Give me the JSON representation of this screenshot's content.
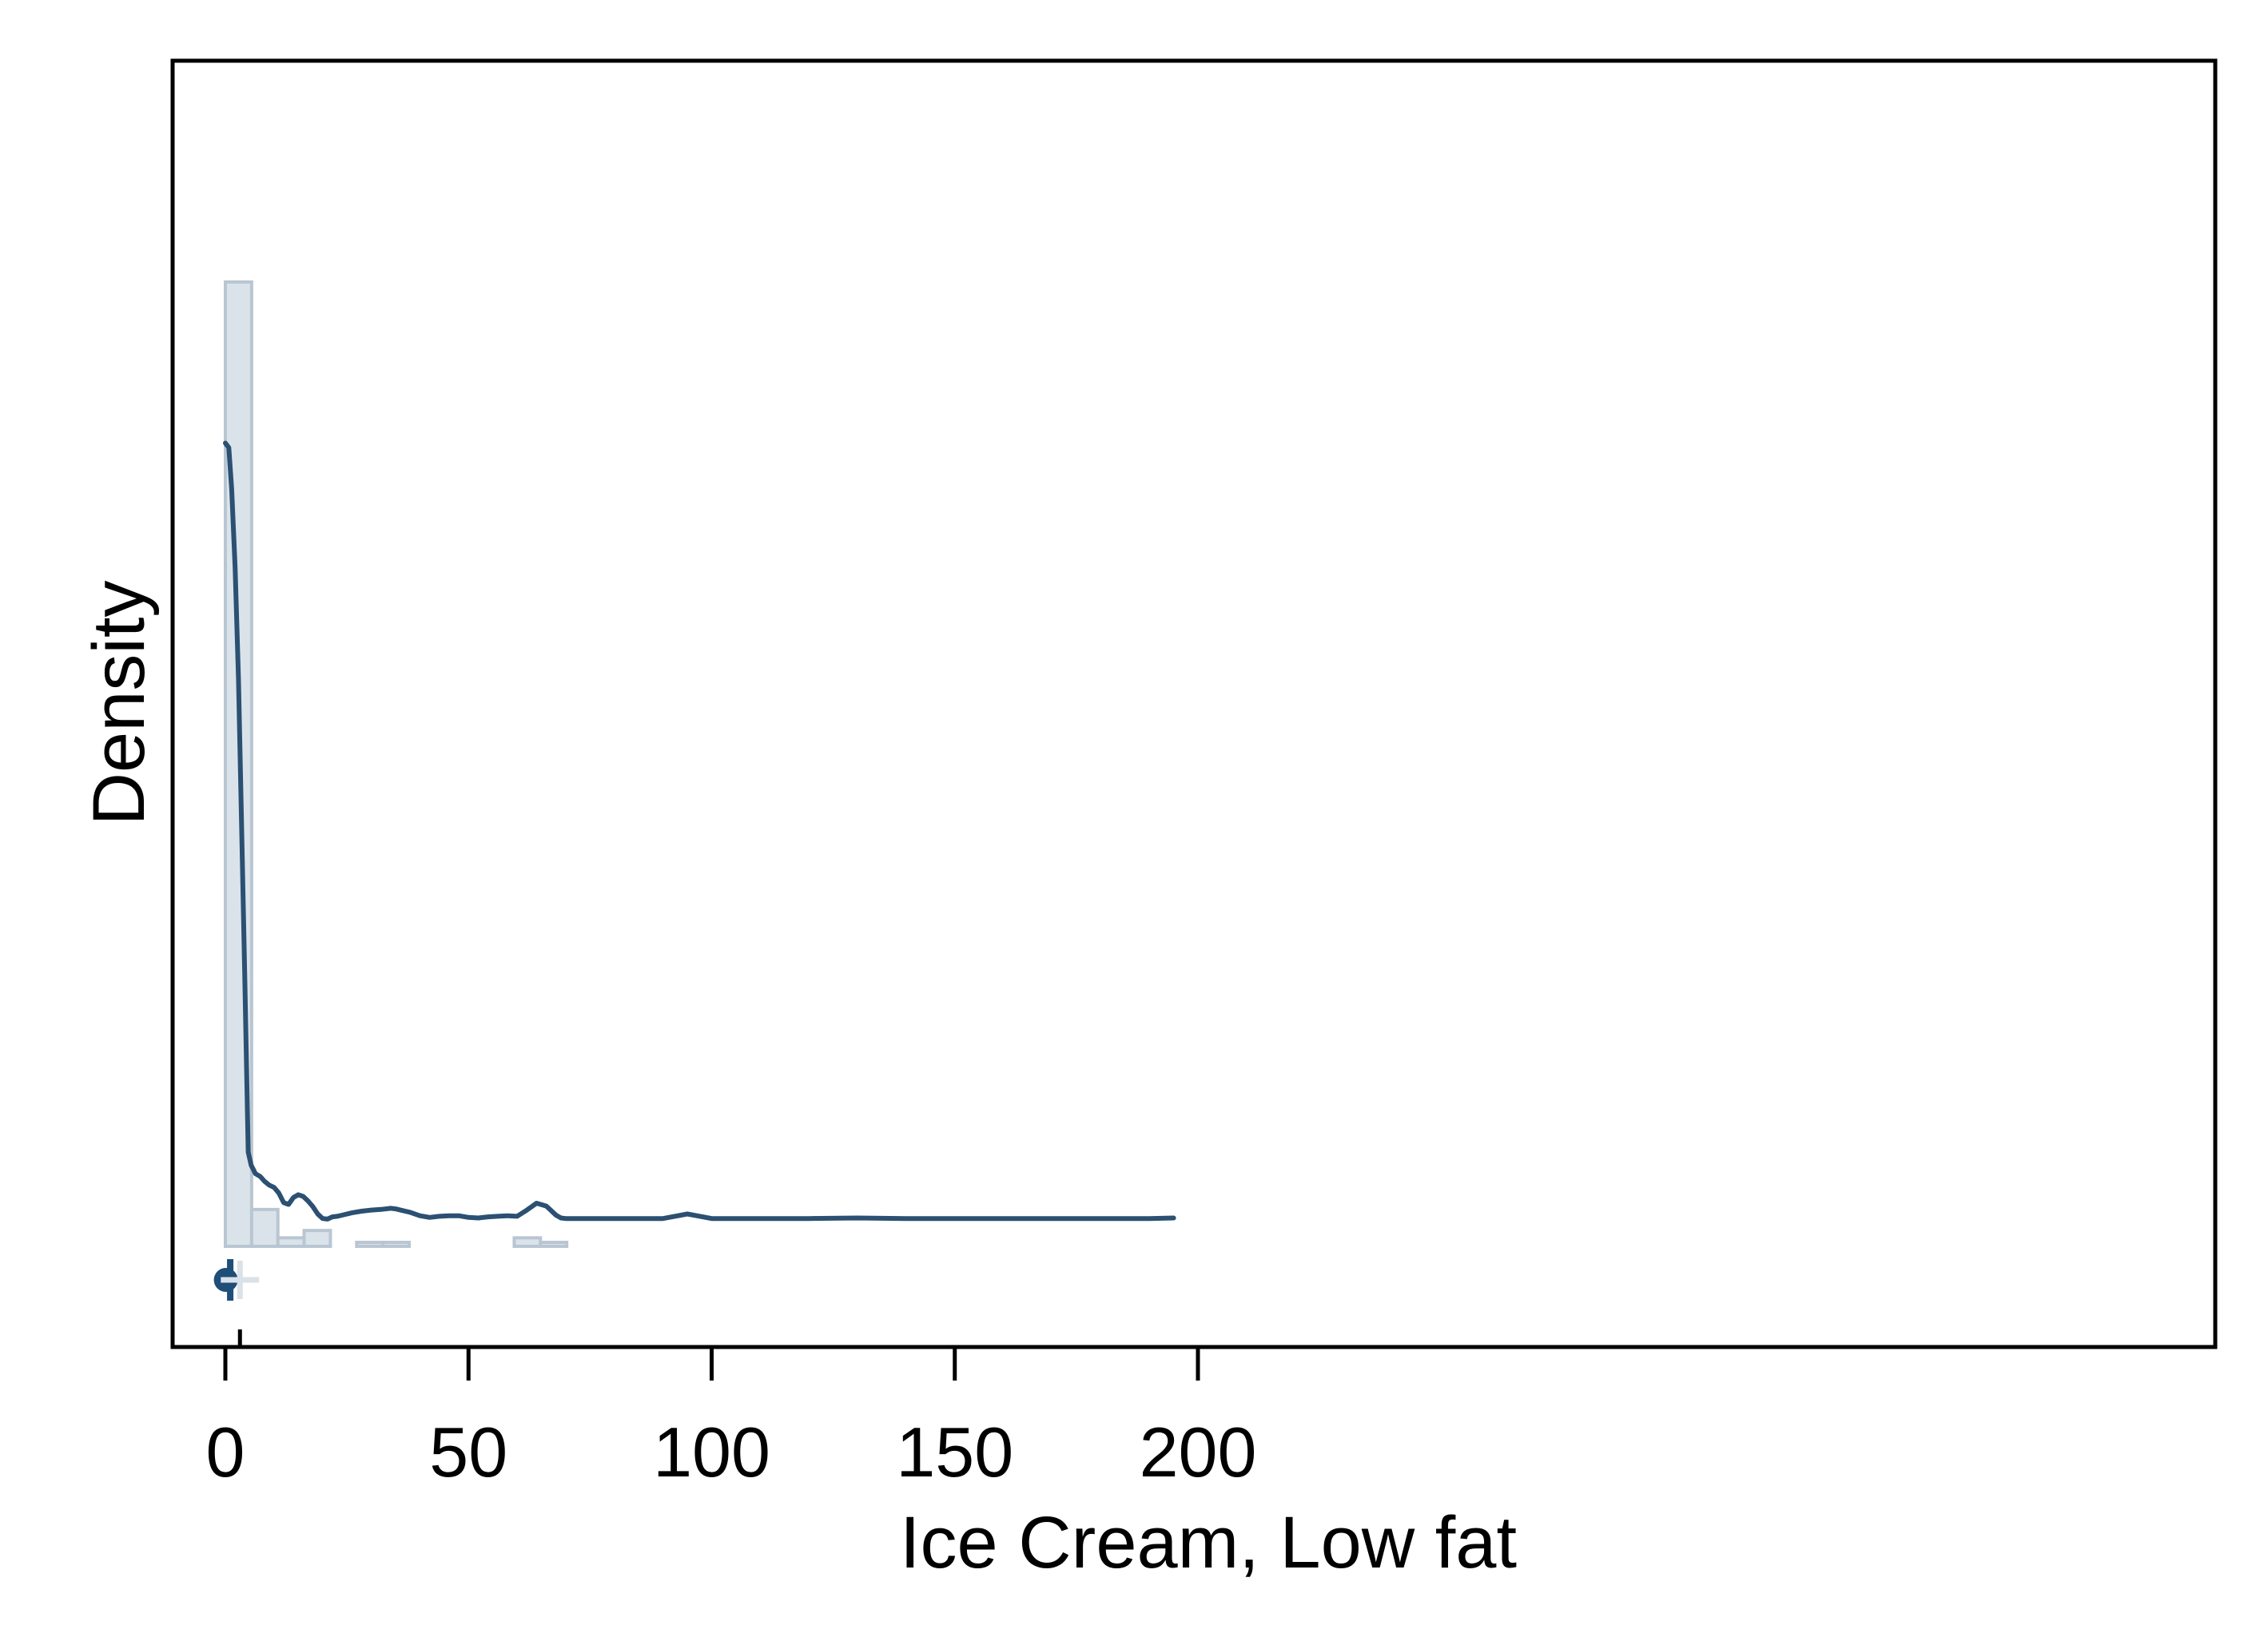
{
  "chart_data": {
    "type": "bar",
    "subtype": "histogram-with-kernel-density",
    "title": "",
    "xlabel": "Ice Cream, Low fat",
    "ylabel": "Density",
    "xlim": [
      -5,
      205
    ],
    "xticks": [
      0,
      50,
      100,
      150,
      200
    ],
    "y_tick_labels_shown": false,
    "grid": false,
    "legend": "none",
    "histogram": {
      "bin_width": 5.4,
      "bins": [
        {
          "x0": 0.0,
          "x1": 5.4,
          "density": 0.17
        },
        {
          "x0": 5.4,
          "x1": 10.8,
          "density": 0.0065
        },
        {
          "x0": 10.8,
          "x1": 16.2,
          "density": 0.0015
        },
        {
          "x0": 16.2,
          "x1": 21.6,
          "density": 0.0028
        },
        {
          "x0": 21.6,
          "x1": 27.0,
          "density": 0.0
        },
        {
          "x0": 27.0,
          "x1": 32.4,
          "density": 0.0007
        },
        {
          "x0": 32.4,
          "x1": 37.8,
          "density": 0.0007
        },
        {
          "x0": 37.8,
          "x1": 43.2,
          "density": 0.0
        },
        {
          "x0": 43.2,
          "x1": 48.6,
          "density": 0.0
        },
        {
          "x0": 48.6,
          "x1": 54.0,
          "density": 0.0
        },
        {
          "x0": 54.0,
          "x1": 59.4,
          "density": 0.0
        },
        {
          "x0": 59.4,
          "x1": 64.8,
          "density": 0.0015
        },
        {
          "x0": 64.8,
          "x1": 70.2,
          "density": 0.0007
        }
      ]
    },
    "kde": {
      "x": [
        0,
        0.7,
        1.3,
        2,
        2.7,
        3.3,
        4,
        4.7,
        5.3,
        6.2,
        7.2,
        8,
        9,
        10,
        11,
        12,
        13,
        14,
        15,
        16,
        17,
        18,
        19,
        20,
        21,
        22,
        23,
        24,
        26,
        28,
        30,
        32,
        34,
        35,
        36,
        38,
        40,
        42,
        44,
        46,
        48,
        50,
        52,
        54,
        56,
        58,
        60,
        62,
        64,
        66,
        68,
        69,
        70,
        75,
        80,
        85,
        90,
        95,
        100,
        110,
        120,
        130,
        140,
        150,
        160,
        170,
        180,
        190,
        195
      ],
      "y": [
        0.1416,
        0.1408,
        0.1335,
        0.1197,
        0.1001,
        0.0756,
        0.0474,
        0.0166,
        0.0143,
        0.0128,
        0.0123,
        0.0115,
        0.0108,
        0.0104,
        0.0094,
        0.0077,
        0.0074,
        0.0086,
        0.0091,
        0.0088,
        0.008,
        0.007,
        0.0057,
        0.0049,
        0.0048,
        0.0052,
        0.0053,
        0.0055,
        0.0059,
        0.0062,
        0.0064,
        0.0065,
        0.0067,
        0.0066,
        0.0064,
        0.006,
        0.0054,
        0.0051,
        0.0053,
        0.0054,
        0.0054,
        0.0051,
        0.005,
        0.0052,
        0.0053,
        0.0054,
        0.0053,
        0.0064,
        0.0076,
        0.0071,
        0.0055,
        0.005,
        0.0049,
        0.0049,
        0.0049,
        0.0049,
        0.0049,
        0.0057,
        0.0049,
        0.0049,
        0.0049,
        0.005,
        0.0049,
        0.0049,
        0.0049,
        0.0049,
        0.0049,
        0.0049,
        0.005
      ]
    },
    "summary_markers": [
      {
        "kind": "dot",
        "x": 0.1
      },
      {
        "kind": "bar",
        "x": 1.0
      },
      {
        "kind": "plus",
        "x": 3.0
      }
    ],
    "colors": {
      "kde_line": "#2b5072",
      "hist_fill": "#dbe3ea",
      "hist_stroke": "#b9c6d2",
      "marker_dot": "#1f4e79",
      "marker_plus": "#dbe1e8",
      "frame": "#000000"
    }
  }
}
